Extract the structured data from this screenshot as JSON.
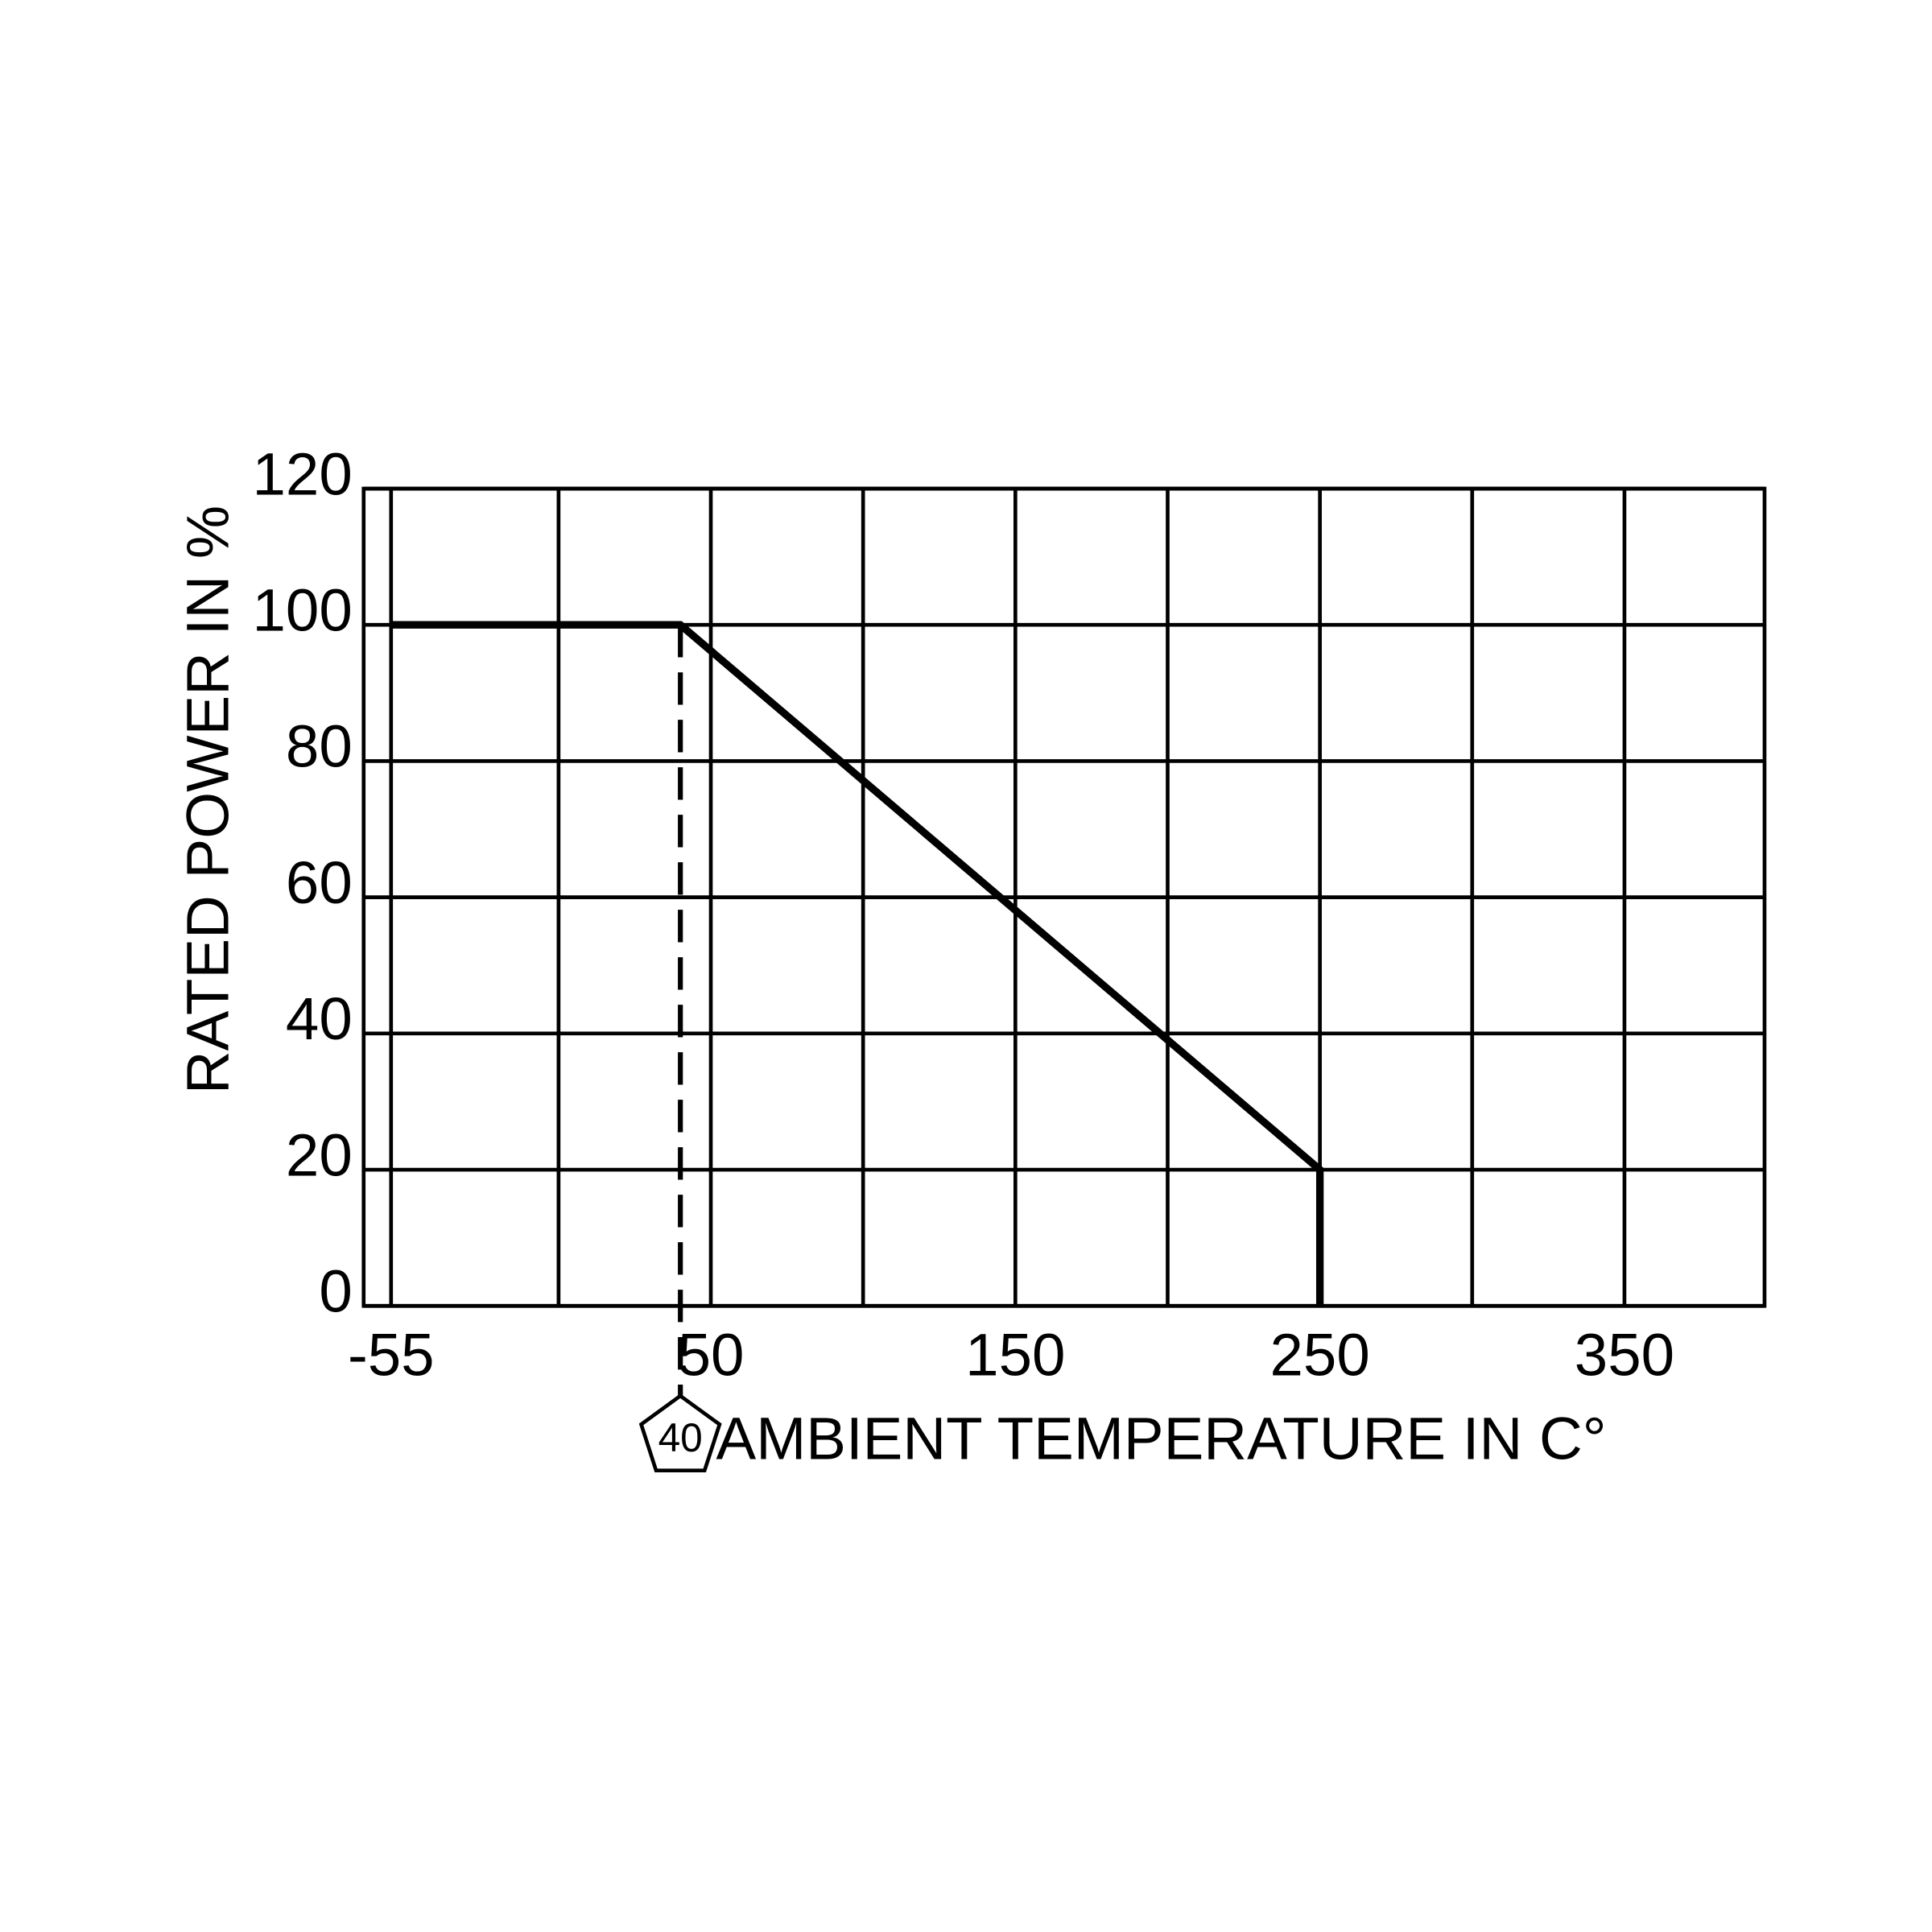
{
  "chart_data": {
    "type": "line",
    "x_label": "AMBIENT TEMPERATURE IN C°",
    "y_label": "RATED POWER IN %",
    "x": [
      -55,
      40,
      250,
      250
    ],
    "values": [
      100,
      100,
      20,
      0
    ],
    "color": "#000000",
    "xlim": [
      -64,
      396
    ],
    "xticks": [
      -55,
      {
        "value": 0,
        "label": null
      },
      50,
      {
        "value": 100,
        "label": null
      },
      150,
      {
        "value": 200,
        "label": null
      },
      250,
      {
        "value": 300,
        "label": null
      },
      350
    ],
    "ylim": [
      0,
      120
    ],
    "yticks": [
      0,
      20,
      40,
      60,
      80,
      100,
      120
    ],
    "grid": true,
    "marker": 40
  }
}
